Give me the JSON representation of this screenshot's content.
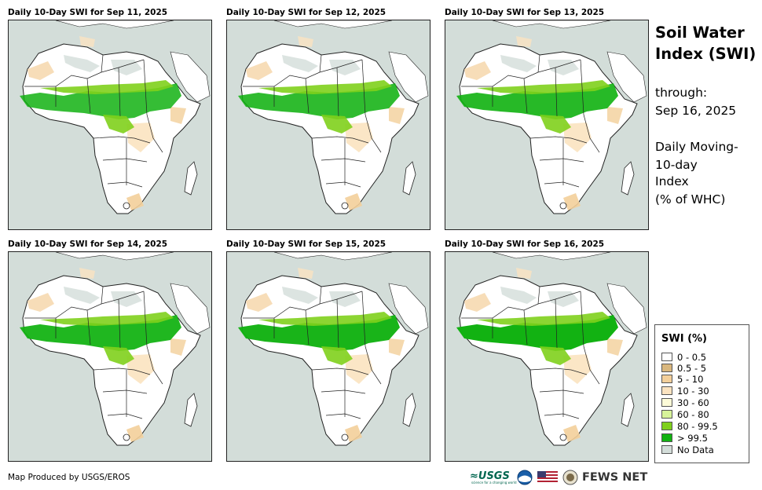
{
  "panels": [
    {
      "title": "Daily 10-Day SWI for Sep 11, 2025"
    },
    {
      "title": "Daily 10-Day SWI for Sep 12, 2025"
    },
    {
      "title": "Daily 10-Day SWI for Sep 13, 2025"
    },
    {
      "title": "Daily 10-Day SWI for Sep 14, 2025"
    },
    {
      "title": "Daily 10-Day SWI for Sep 15, 2025"
    },
    {
      "title": "Daily 10-Day SWI for Sep 16, 2025"
    }
  ],
  "sidebar": {
    "title_line1": "Soil Water",
    "title_line2": "Index (SWI)",
    "through_label": "through:",
    "through_date": "Sep 16, 2025",
    "desc_line1": "Daily Moving-",
    "desc_line2": "10-day",
    "desc_line3": "Index",
    "desc_line4": "(% of WHC)"
  },
  "legend": {
    "title": "SWI (%)",
    "items": [
      {
        "label": "0 - 0.5",
        "color": "#ffffff"
      },
      {
        "label": "0.5 - 5",
        "color": "#d9b77e"
      },
      {
        "label": "5 - 10",
        "color": "#f3cf9a"
      },
      {
        "label": "10 - 30",
        "color": "#fbe3c0"
      },
      {
        "label": "30 - 60",
        "color": "#fdfbd8"
      },
      {
        "label": "60 - 80",
        "color": "#d7f39a"
      },
      {
        "label": "80 - 99.5",
        "color": "#7fd01c"
      },
      {
        "label": "> 99.5",
        "color": "#12b212"
      },
      {
        "label": "No Data",
        "color": "#d3ddd9"
      }
    ]
  },
  "footer": {
    "credit": "Map Produced by USGS/EROS",
    "usgs_logo": "≈USGS",
    "usgs_tagline": "science for a changing world",
    "fews_net": "FEWS NET"
  }
}
